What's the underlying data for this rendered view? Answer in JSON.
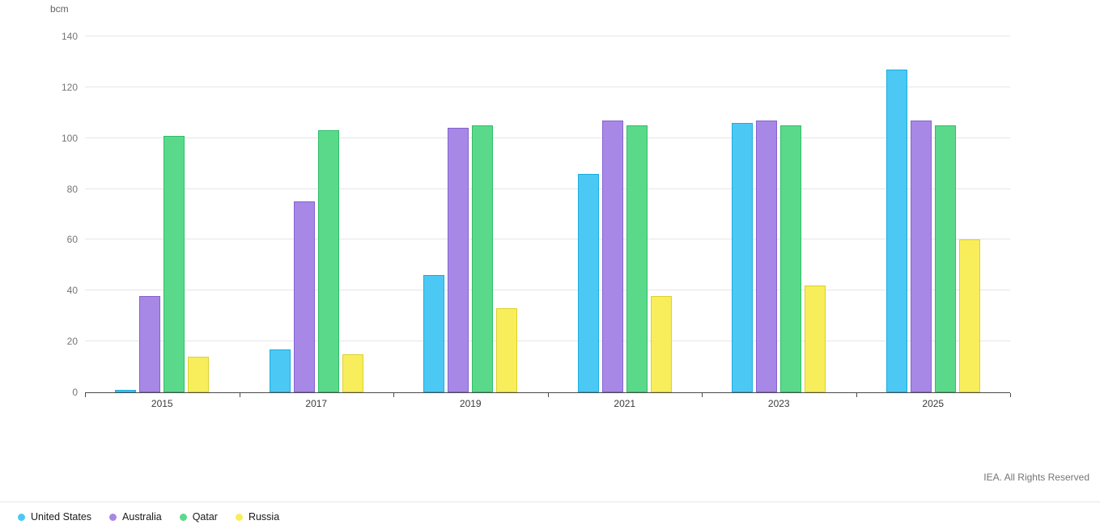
{
  "chart_data": {
    "type": "bar",
    "title": "",
    "unit_label": "bcm",
    "xlabel": "",
    "ylabel": "bcm",
    "ylim": [
      0,
      140
    ],
    "yticks": [
      0,
      20,
      40,
      60,
      80,
      100,
      120,
      140
    ],
    "grid": true,
    "legend_position": "bottom-left",
    "categories": [
      "2015",
      "2017",
      "2019",
      "2021",
      "2023",
      "2025"
    ],
    "series": [
      {
        "name": "United States",
        "color": "#4cc8f4",
        "border": "#1badde",
        "values": [
          1,
          17,
          46,
          86,
          106,
          127
        ]
      },
      {
        "name": "Australia",
        "color": "#a888e6",
        "border": "#8561d0",
        "values": [
          38,
          75,
          104,
          107,
          107,
          107
        ]
      },
      {
        "name": "Qatar",
        "color": "#5bd98a",
        "border": "#2fbd68",
        "values": [
          101,
          103,
          105,
          105,
          105,
          105
        ]
      },
      {
        "name": "Russia",
        "color": "#f8ee5c",
        "border": "#ddd02e",
        "values": [
          14,
          15,
          33,
          38,
          42,
          60
        ]
      }
    ],
    "footer": "IEA. All Rights Reserved"
  }
}
